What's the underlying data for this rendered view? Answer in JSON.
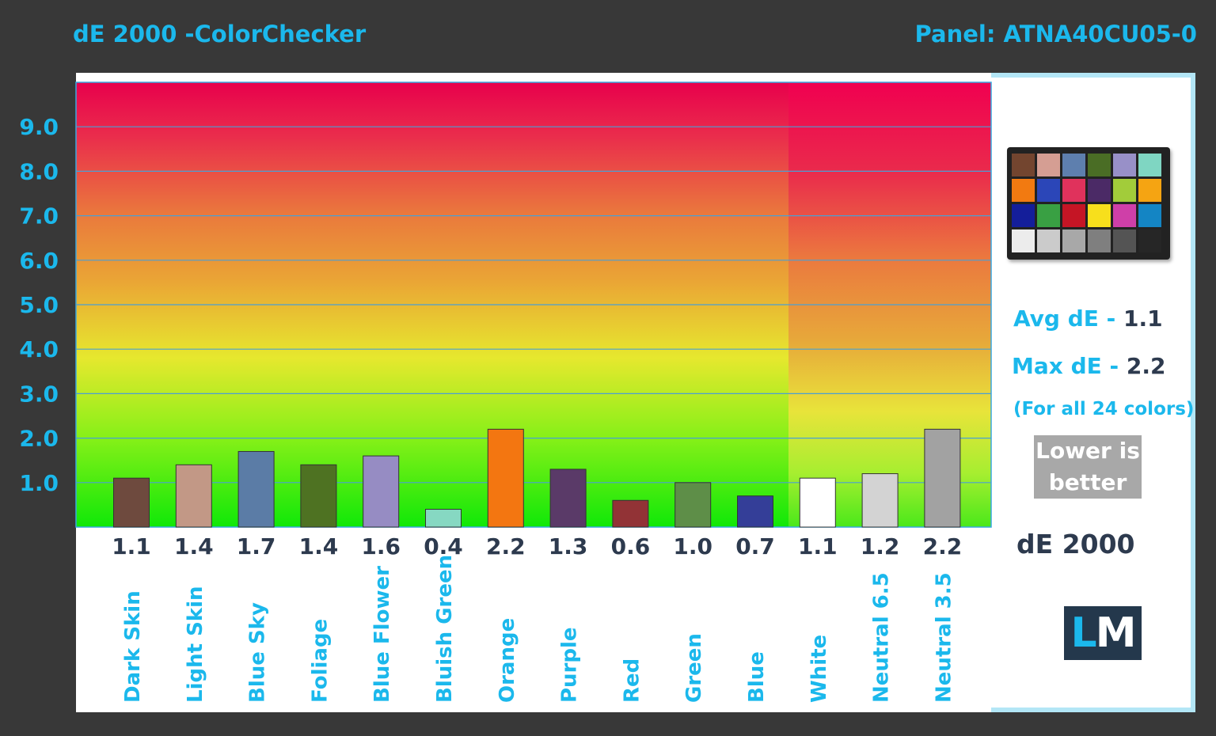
{
  "title": "dE 2000 -ColorChecker",
  "panel": "Panel: ATNA40CU05-0",
  "summary": {
    "avg_label": "Avg dE - ",
    "avg_value": "1.1",
    "max_label": "Max dE - ",
    "max_value": "2.2",
    "note": "(For all 24 colors)",
    "badge_line1": "Lower is",
    "badge_line2": "better",
    "metric": "dE 2000"
  },
  "logo": {
    "l": "L",
    "m": "M"
  },
  "colorchecker_swatches": [
    "#73452f",
    "#d59e93",
    "#5e7fae",
    "#4a6d25",
    "#9890c8",
    "#7fd6c2",
    "#f27a11",
    "#2b46b8",
    "#e0325c",
    "#4b2a66",
    "#a2cc3a",
    "#f5a412",
    "#141e9a",
    "#39a043",
    "#c51525",
    "#f7df1c",
    "#cf3fa8",
    "#1485c4",
    "#ececec",
    "#cbcbcb",
    "#a8a8a8",
    "#7f7f7f",
    "#545454",
    "#262626"
  ],
  "chart_data": {
    "type": "bar",
    "title": "dE 2000 -ColorChecker",
    "ylabel": "",
    "xlabel": "dE 2000",
    "ylim": [
      0,
      10
    ],
    "yticks": [
      "1.0",
      "2.0",
      "3.0",
      "4.0",
      "5.0",
      "6.0",
      "7.0",
      "8.0",
      "9.0"
    ],
    "grid": true,
    "categories": [
      "Dark Skin",
      "Light Skin",
      "Blue Sky",
      "Foliage",
      "Blue Flower",
      "Bluish Green",
      "Orange",
      "Purple",
      "Red",
      "Green",
      "Blue",
      "White",
      "Neutral 6.5",
      "Neutral 3.5"
    ],
    "values": [
      1.1,
      1.4,
      1.7,
      1.4,
      1.6,
      0.4,
      2.2,
      1.3,
      0.6,
      1.0,
      0.7,
      1.1,
      1.2,
      2.2
    ],
    "value_labels": [
      "1.1",
      "1.4",
      "1.7",
      "1.4",
      "1.6",
      "0.4",
      "2.2",
      "1.3",
      "0.6",
      "1.0",
      "0.7",
      "1.1",
      "1.2",
      "2.2"
    ],
    "colors": [
      "#6e4a3e",
      "#c29886",
      "#5b7ca6",
      "#4e7222",
      "#968cc3",
      "#86d8c2",
      "#f37611",
      "#5a3a68",
      "#923336",
      "#5e8e48",
      "#343e98",
      "#ffffff",
      "#d3d3d3",
      "#a2a2a2"
    ]
  }
}
